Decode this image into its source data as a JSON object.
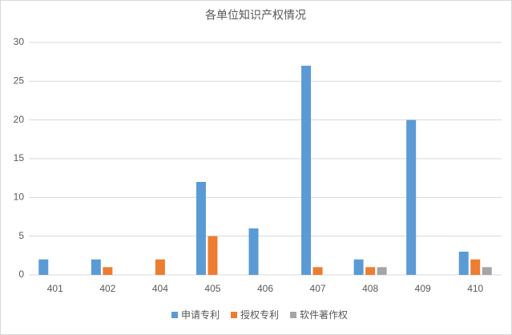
{
  "chart_data": {
    "type": "bar",
    "title": "各单位知识产权情况",
    "categories": [
      "401",
      "402",
      "404",
      "405",
      "406",
      "407",
      "408",
      "409",
      "410"
    ],
    "series": [
      {
        "name": "申请专利",
        "color": "#5b9bd5",
        "values": [
          2,
          2,
          null,
          12,
          6,
          27,
          2,
          20,
          3
        ]
      },
      {
        "name": "授权专利",
        "color": "#ed7d31",
        "values": [
          null,
          1,
          2,
          5,
          null,
          1,
          1,
          null,
          2
        ]
      },
      {
        "name": "软件著作权",
        "color": "#a5a5a5",
        "values": [
          null,
          null,
          null,
          null,
          null,
          null,
          1,
          null,
          1
        ]
      }
    ],
    "ylim": [
      0,
      30
    ],
    "yticks": [
      0,
      5,
      10,
      15,
      20,
      25,
      30
    ],
    "grid": true,
    "legend": "bottom"
  }
}
